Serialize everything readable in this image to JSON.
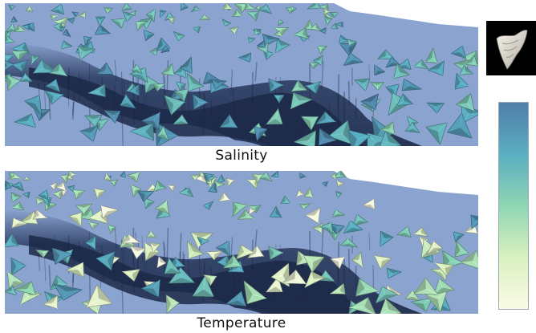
{
  "figure": {
    "panels": [
      {
        "id": "salinity",
        "caption": "Salinity"
      },
      {
        "id": "temperature",
        "caption": "Temperature"
      }
    ],
    "glyph_key": {
      "icon": "shell-glyph-icon",
      "background": "#000000",
      "glyph_color": "#e8e4dc"
    },
    "color_scale": {
      "stops": [
        "#4f7fa8",
        "#5aaec2",
        "#8fd6b2",
        "#d9f0bf",
        "#fbfbe6"
      ],
      "border": "#9aa7b4"
    },
    "terrain": {
      "surface": "#8aa3cf",
      "shadow": "#2d3e64",
      "deep": "#1c2948"
    }
  }
}
